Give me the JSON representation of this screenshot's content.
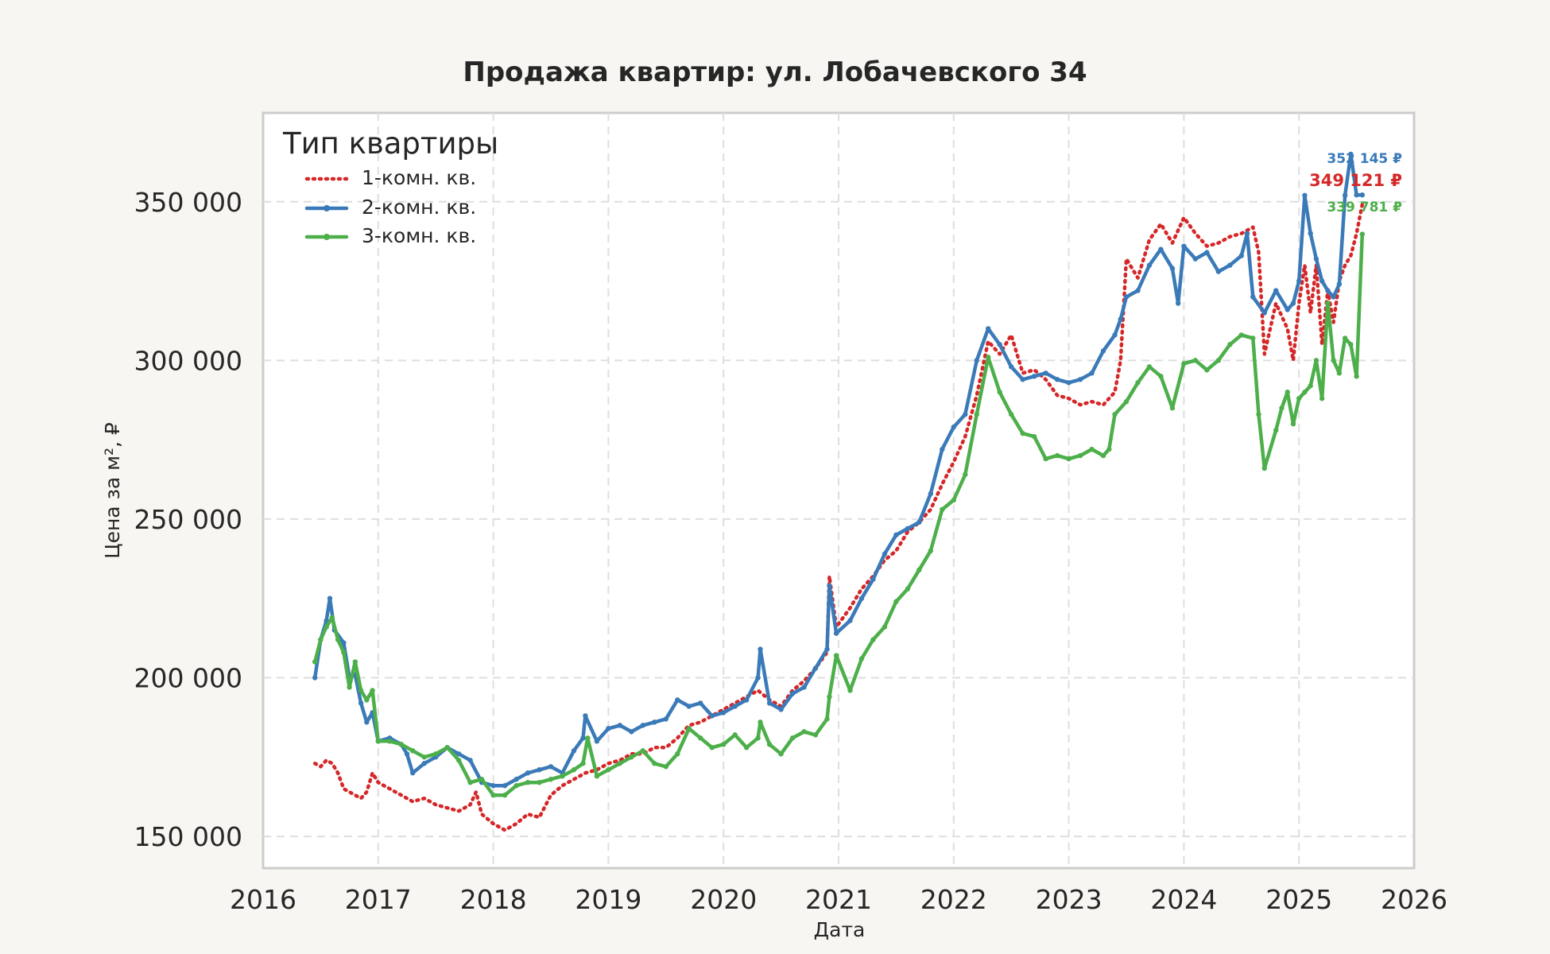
{
  "chart_data": {
    "type": "line",
    "title": "Продажа квартир: ул. Лобачевского 34",
    "xlabel": "Дата",
    "ylabel": "Цена за м², ₽",
    "xlim": [
      2016,
      2026
    ],
    "ylim": [
      140000,
      378000
    ],
    "xticks": [
      2016,
      2017,
      2018,
      2019,
      2020,
      2021,
      2022,
      2023,
      2024,
      2025,
      2026
    ],
    "xtick_labels": [
      "2016",
      "2017",
      "2018",
      "2019",
      "2020",
      "2021",
      "2022",
      "2023",
      "2024",
      "2025",
      "2026"
    ],
    "yticks": [
      150000,
      200000,
      250000,
      300000,
      350000
    ],
    "ytick_labels": [
      "150 000",
      "200 000",
      "250 000",
      "300 000",
      "350 000"
    ],
    "grid": true,
    "legend": {
      "title": "Тип квартиры",
      "position": "top-left"
    },
    "series": [
      {
        "name": "1-комн. кв.",
        "color": "#d62728",
        "style": "dotted",
        "end_label": "349 121 ₽",
        "x": [
          2016.45,
          2016.5,
          2016.55,
          2016.6,
          2016.65,
          2016.7,
          2016.75,
          2016.8,
          2016.85,
          2016.9,
          2016.95,
          2017.0,
          2017.1,
          2017.2,
          2017.3,
          2017.4,
          2017.5,
          2017.6,
          2017.7,
          2017.8,
          2017.85,
          2017.9,
          2018.0,
          2018.1,
          2018.2,
          2018.3,
          2018.4,
          2018.5,
          2018.6,
          2018.7,
          2018.8,
          2018.9,
          2019.0,
          2019.1,
          2019.2,
          2019.3,
          2019.4,
          2019.5,
          2019.6,
          2019.7,
          2019.8,
          2019.9,
          2020.0,
          2020.1,
          2020.2,
          2020.3,
          2020.4,
          2020.5,
          2020.6,
          2020.7,
          2020.8,
          2020.9,
          2020.92,
          2020.98,
          2021.1,
          2021.2,
          2021.3,
          2021.4,
          2021.5,
          2021.6,
          2021.7,
          2021.8,
          2021.9,
          2022.0,
          2022.1,
          2022.2,
          2022.3,
          2022.4,
          2022.5,
          2022.6,
          2022.7,
          2022.8,
          2022.9,
          2023.0,
          2023.1,
          2023.2,
          2023.3,
          2023.4,
          2023.45,
          2023.5,
          2023.6,
          2023.7,
          2023.8,
          2023.9,
          2024.0,
          2024.1,
          2024.2,
          2024.3,
          2024.4,
          2024.5,
          2024.6,
          2024.65,
          2024.7,
          2024.8,
          2024.9,
          2024.95,
          2025.0,
          2025.05,
          2025.1,
          2025.15,
          2025.2,
          2025.25,
          2025.3,
          2025.35,
          2025.4,
          2025.45,
          2025.5,
          2025.55
        ],
        "y": [
          173000,
          172000,
          174000,
          173000,
          170000,
          165000,
          164000,
          163000,
          162000,
          164000,
          170000,
          167000,
          165000,
          163000,
          161000,
          162000,
          160000,
          159000,
          158000,
          160000,
          164000,
          157000,
          154000,
          152000,
          154000,
          157000,
          156000,
          163000,
          166000,
          168000,
          170000,
          171000,
          173000,
          174000,
          176000,
          176000,
          178000,
          178000,
          181000,
          185000,
          186000,
          188000,
          190000,
          192000,
          194000,
          196000,
          193000,
          191000,
          196000,
          199000,
          203000,
          208000,
          232000,
          216000,
          222000,
          228000,
          232000,
          237000,
          240000,
          246000,
          249000,
          253000,
          261000,
          268000,
          276000,
          289000,
          306000,
          302000,
          308000,
          296000,
          297000,
          294000,
          289000,
          288000,
          286000,
          287000,
          286000,
          290000,
          300000,
          332000,
          326000,
          338000,
          343000,
          337000,
          345000,
          340000,
          336000,
          337000,
          339000,
          340000,
          342000,
          334000,
          302000,
          318000,
          310000,
          300000,
          318000,
          330000,
          315000,
          330000,
          305000,
          322000,
          312000,
          325000,
          330000,
          333000,
          340000,
          349121
        ]
      },
      {
        "name": "2-комн. кв.",
        "color": "#3a7ab8",
        "style": "solid-marker",
        "end_label": "352 145 ₽",
        "x": [
          2016.45,
          2016.5,
          2016.55,
          2016.58,
          2016.62,
          2016.7,
          2016.75,
          2016.8,
          2016.85,
          2016.9,
          2016.95,
          2017.0,
          2017.1,
          2017.2,
          2017.25,
          2017.3,
          2017.4,
          2017.5,
          2017.6,
          2017.7,
          2017.8,
          2017.9,
          2018.0,
          2018.1,
          2018.2,
          2018.3,
          2018.4,
          2018.5,
          2018.6,
          2018.7,
          2018.78,
          2018.8,
          2018.9,
          2019.0,
          2019.1,
          2019.2,
          2019.3,
          2019.4,
          2019.5,
          2019.6,
          2019.7,
          2019.8,
          2019.9,
          2020.0,
          2020.1,
          2020.2,
          2020.3,
          2020.32,
          2020.4,
          2020.5,
          2020.6,
          2020.7,
          2020.8,
          2020.9,
          2020.92,
          2020.98,
          2021.1,
          2021.2,
          2021.3,
          2021.4,
          2021.5,
          2021.6,
          2021.7,
          2021.8,
          2021.9,
          2022.0,
          2022.1,
          2022.2,
          2022.3,
          2022.4,
          2022.5,
          2022.6,
          2022.7,
          2022.8,
          2022.9,
          2023.0,
          2023.1,
          2023.2,
          2023.3,
          2023.4,
          2023.45,
          2023.5,
          2023.6,
          2023.7,
          2023.8,
          2023.9,
          2023.95,
          2024.0,
          2024.1,
          2024.2,
          2024.3,
          2024.4,
          2024.5,
          2024.55,
          2024.6,
          2024.7,
          2024.8,
          2024.9,
          2024.95,
          2025.0,
          2025.05,
          2025.1,
          2025.15,
          2025.2,
          2025.25,
          2025.3,
          2025.35,
          2025.4,
          2025.45,
          2025.5,
          2025.55
        ],
        "y": [
          200000,
          212000,
          218000,
          225000,
          215000,
          211000,
          200000,
          201000,
          192000,
          186000,
          189000,
          180000,
          181000,
          179000,
          176000,
          170000,
          173000,
          175000,
          178000,
          176000,
          174000,
          167000,
          166000,
          166000,
          168000,
          170000,
          171000,
          172000,
          170000,
          177000,
          181000,
          188000,
          180000,
          184000,
          185000,
          183000,
          185000,
          186000,
          187000,
          193000,
          191000,
          192000,
          188000,
          189000,
          191000,
          193000,
          200000,
          209000,
          192000,
          190000,
          195000,
          197000,
          203000,
          209000,
          229000,
          214000,
          218000,
          225000,
          231000,
          239000,
          245000,
          247000,
          249000,
          258000,
          272000,
          279000,
          283000,
          300000,
          310000,
          305000,
          298000,
          294000,
          295000,
          296000,
          294000,
          293000,
          294000,
          296000,
          303000,
          308000,
          313000,
          320000,
          322000,
          330000,
          335000,
          329000,
          318000,
          336000,
          332000,
          334000,
          328000,
          330000,
          333000,
          340000,
          320000,
          315000,
          322000,
          316000,
          318000,
          325000,
          352000,
          340000,
          332000,
          325000,
          322000,
          320000,
          324000,
          352000,
          365000,
          352145,
          352145
        ]
      },
      {
        "name": "3-комн. кв.",
        "color": "#4caf4a",
        "style": "solid-marker",
        "end_label": "339 781 ₽",
        "x": [
          2016.45,
          2016.5,
          2016.55,
          2016.6,
          2016.65,
          2016.7,
          2016.75,
          2016.8,
          2016.85,
          2016.9,
          2016.95,
          2017.0,
          2017.1,
          2017.2,
          2017.3,
          2017.4,
          2017.5,
          2017.6,
          2017.7,
          2017.8,
          2017.9,
          2018.0,
          2018.1,
          2018.2,
          2018.3,
          2018.4,
          2018.5,
          2018.6,
          2018.7,
          2018.78,
          2018.82,
          2018.9,
          2019.0,
          2019.1,
          2019.2,
          2019.3,
          2019.4,
          2019.5,
          2019.6,
          2019.7,
          2019.8,
          2019.9,
          2020.0,
          2020.1,
          2020.2,
          2020.3,
          2020.32,
          2020.4,
          2020.5,
          2020.6,
          2020.7,
          2020.8,
          2020.9,
          2020.92,
          2020.98,
          2021.1,
          2021.2,
          2021.3,
          2021.4,
          2021.5,
          2021.6,
          2021.7,
          2021.8,
          2021.9,
          2022.0,
          2022.1,
          2022.2,
          2022.3,
          2022.4,
          2022.5,
          2022.6,
          2022.7,
          2022.8,
          2022.9,
          2023.0,
          2023.1,
          2023.2,
          2023.3,
          2023.35,
          2023.4,
          2023.5,
          2023.6,
          2023.7,
          2023.8,
          2023.9,
          2024.0,
          2024.1,
          2024.2,
          2024.3,
          2024.4,
          2024.5,
          2024.6,
          2024.65,
          2024.7,
          2024.8,
          2024.85,
          2024.9,
          2024.95,
          2025.0,
          2025.05,
          2025.1,
          2025.15,
          2025.2,
          2025.25,
          2025.3,
          2025.35,
          2025.4,
          2025.45,
          2025.5,
          2025.55
        ],
        "y": [
          205000,
          212000,
          216000,
          219000,
          212000,
          208000,
          197000,
          205000,
          196000,
          193000,
          196000,
          180000,
          180000,
          179000,
          177000,
          175000,
          176000,
          178000,
          174000,
          167000,
          168000,
          163000,
          163000,
          166000,
          167000,
          167000,
          168000,
          169000,
          171000,
          173000,
          181000,
          169000,
          171000,
          173000,
          175000,
          177000,
          173000,
          172000,
          176000,
          184000,
          181000,
          178000,
          179000,
          182000,
          178000,
          181000,
          186000,
          179000,
          176000,
          181000,
          183000,
          182000,
          187000,
          194000,
          207000,
          196000,
          206000,
          212000,
          216000,
          224000,
          228000,
          234000,
          240000,
          253000,
          256000,
          264000,
          283000,
          301000,
          290000,
          283000,
          277000,
          276000,
          269000,
          270000,
          269000,
          270000,
          272000,
          270000,
          272000,
          283000,
          287000,
          293000,
          298000,
          295000,
          285000,
          299000,
          300000,
          297000,
          300000,
          305000,
          308000,
          307000,
          283000,
          266000,
          278000,
          285000,
          290000,
          280000,
          288000,
          290000,
          292000,
          300000,
          288000,
          318000,
          300000,
          296000,
          307000,
          305000,
          295000,
          339781
        ]
      }
    ]
  }
}
